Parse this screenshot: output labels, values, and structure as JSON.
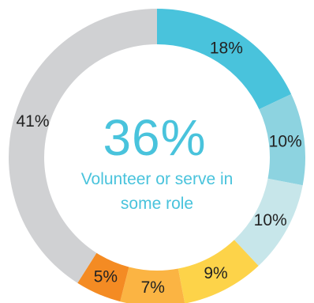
{
  "chart_data": {
    "type": "pie",
    "style": "donut",
    "categories": [
      "",
      "",
      "",
      "",
      "",
      "",
      ""
    ],
    "values": [
      18,
      10,
      10,
      9,
      7,
      5,
      41
    ],
    "labels": [
      "18%",
      "10%",
      "10%",
      "9%",
      "7%",
      "5%",
      "41%"
    ],
    "colors": [
      "#49C3DC",
      "#8DD3E0",
      "#C7E6EA",
      "#FDD349",
      "#FBB443",
      "#F48B23",
      "#D0D1D3"
    ],
    "center": {
      "value": "36%",
      "text_line1": "Volunteer or serve in",
      "text_line2": "some role",
      "color": "#49C3DC"
    }
  }
}
